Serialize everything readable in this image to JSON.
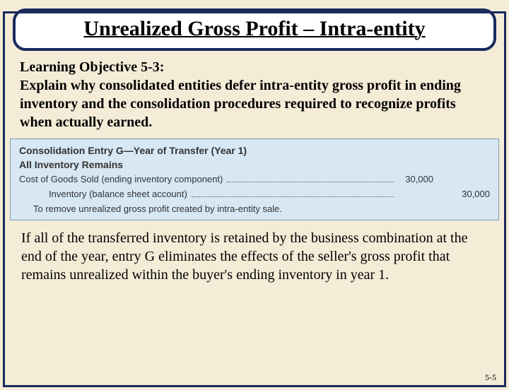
{
  "colors": {
    "slide_bg": "#f5ecd8",
    "border": "#1a2a5c",
    "title_bg": "#ffffff",
    "entry_bg": "#d7e7f4",
    "entry_border": "#7a9bb5",
    "text": "#000000",
    "entry_text": "#333333"
  },
  "title": "Unrealized Gross Profit – Intra-entity",
  "objective": {
    "label": "Learning Objective 5-3:",
    "body": "Explain why consolidated entities defer intra-entity gross profit in ending inventory and the consolidation procedures required to recognize profits when actually earned."
  },
  "entry": {
    "header1": "Consolidation Entry G—Year of Transfer (Year 1)",
    "header2": "All Inventory Remains",
    "row1_label": "Cost of Goods Sold (ending inventory component)",
    "row1_debit": "30,000",
    "row2_label": "Inventory (balance sheet account)",
    "row2_credit": "30,000",
    "note": "To remove unrealized gross profit created by intra-entity sale."
  },
  "explanation": "If all of the transferred inventory is retained by the business combination at the end of the year, entry G eliminates the effects of the seller's gross profit that remains unrealized within the buyer's ending inventory in year 1.",
  "page_number": "5-5"
}
